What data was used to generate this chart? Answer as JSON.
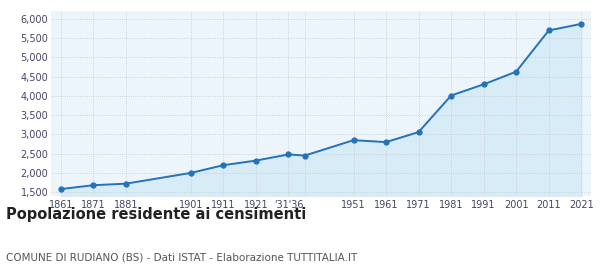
{
  "years": [
    1861,
    1871,
    1881,
    1901,
    1911,
    1921,
    1931,
    1936,
    1951,
    1961,
    1971,
    1981,
    1991,
    2001,
    2011,
    2021
  ],
  "population": [
    1580,
    1680,
    1720,
    2000,
    2200,
    2320,
    2480,
    2450,
    2850,
    2800,
    3060,
    4010,
    4300,
    4630,
    5700,
    5870
  ],
  "tick_labels": [
    "1861",
    "1871",
    "1881",
    "1901",
    "1911",
    "1921",
    "'31'36",
    "",
    "1951",
    "1961",
    "1971",
    "1981",
    "1991",
    "2001",
    "2011",
    "2021"
  ],
  "line_color": "#2472b8",
  "fill_color": "#d8ecf8",
  "marker_color": "#2472b8",
  "bg_color": "#edf5fc",
  "grid_color": "#c8c8c8",
  "ylim": [
    1400,
    6200
  ],
  "yticks": [
    1500,
    2000,
    2500,
    3000,
    3500,
    4000,
    4500,
    5000,
    5500,
    6000
  ],
  "title": "Popolazione residente ai censimenti",
  "subtitle": "COMUNE DI RUDIANO (BS) - Dati ISTAT - Elaborazione TUTTITALIA.IT",
  "title_fontsize": 10.5,
  "subtitle_fontsize": 7.5
}
